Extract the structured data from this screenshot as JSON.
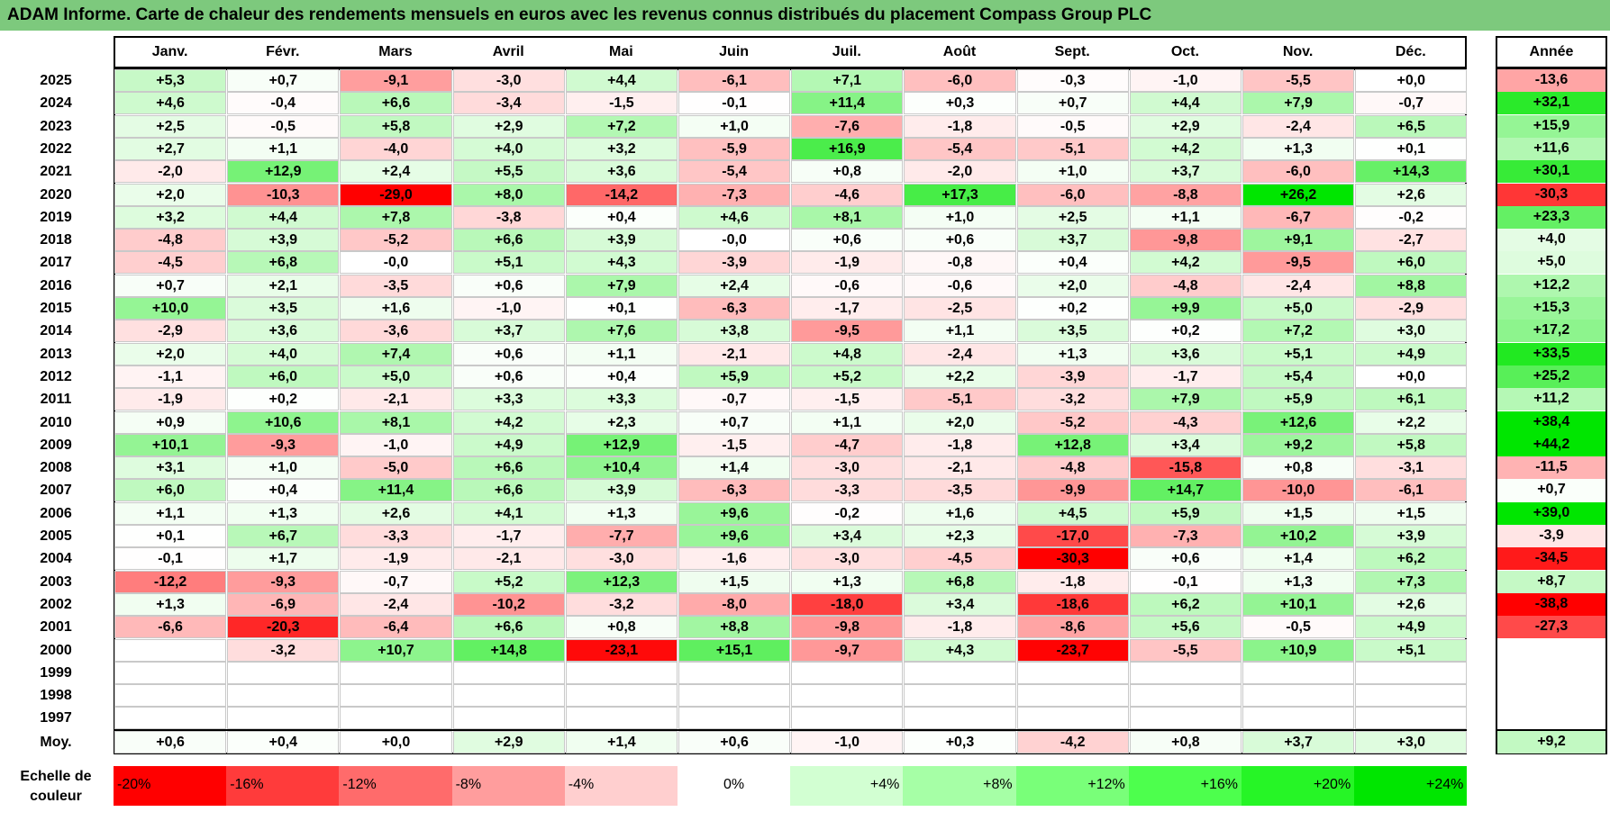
{
  "title": "ADAM Informe. Carte de chaleur des rendements mensuels en euros avec les revenus connus distribués du placement Compass Group PLC",
  "chart_data": {
    "type": "heatmap",
    "months": [
      "Janv.",
      "Févr.",
      "Mars",
      "Avril",
      "Mai",
      "Juin",
      "Juil.",
      "Août",
      "Sept.",
      "Oct.",
      "Nov.",
      "Déc."
    ],
    "year_header": "Année",
    "rows": [
      {
        "year": "2025",
        "months": [
          "+5,3",
          "+0,7",
          "-9,1",
          "-3,0",
          "+4,4",
          "-6,1",
          "+7,1",
          "-6,0",
          "-0,3",
          "-1,0",
          "-5,5",
          "+0,0"
        ],
        "annual": "-13,6"
      },
      {
        "year": "2024",
        "months": [
          "+4,6",
          "-0,4",
          "+6,6",
          "-3,4",
          "-1,5",
          "-0,1",
          "+11,4",
          "+0,3",
          "+0,7",
          "+4,4",
          "+7,9",
          "-0,7"
        ],
        "annual": "+32,1"
      },
      {
        "year": "2023",
        "months": [
          "+2,5",
          "-0,5",
          "+5,8",
          "+2,9",
          "+7,2",
          "+1,0",
          "-7,6",
          "-1,8",
          "-0,5",
          "+2,9",
          "-2,4",
          "+6,5"
        ],
        "annual": "+15,9"
      },
      {
        "year": "2022",
        "months": [
          "+2,7",
          "+1,1",
          "-4,0",
          "+4,0",
          "+3,2",
          "-5,9",
          "+16,9",
          "-5,4",
          "-5,1",
          "+4,2",
          "+1,3",
          "+0,1"
        ],
        "annual": "+11,6"
      },
      {
        "year": "2021",
        "months": [
          "-2,0",
          "+12,9",
          "+2,4",
          "+5,5",
          "+3,6",
          "-5,4",
          "+0,8",
          "-2,0",
          "+1,0",
          "+3,7",
          "-6,0",
          "+14,3"
        ],
        "annual": "+30,1"
      },
      {
        "year": "2020",
        "months": [
          "+2,0",
          "-10,3",
          "-29,0",
          "+8,0",
          "-14,2",
          "-7,3",
          "-4,6",
          "+17,3",
          "-6,0",
          "-8,8",
          "+26,2",
          "+2,6"
        ],
        "annual": "-30,3"
      },
      {
        "year": "2019",
        "months": [
          "+3,2",
          "+4,4",
          "+7,8",
          "-3,8",
          "+0,4",
          "+4,6",
          "+8,1",
          "+1,0",
          "+2,5",
          "+1,1",
          "-6,7",
          "-0,2"
        ],
        "annual": "+23,3"
      },
      {
        "year": "2018",
        "months": [
          "-4,8",
          "+3,9",
          "-5,2",
          "+6,6",
          "+3,9",
          "-0,0",
          "+0,6",
          "+0,6",
          "+3,7",
          "-9,8",
          "+9,1",
          "-2,7"
        ],
        "annual": "+4,0"
      },
      {
        "year": "2017",
        "months": [
          "-4,5",
          "+6,8",
          "-0,0",
          "+5,1",
          "+4,3",
          "-3,9",
          "-1,9",
          "-0,8",
          "+0,4",
          "+4,2",
          "-9,5",
          "+6,0"
        ],
        "annual": "+5,0"
      },
      {
        "year": "2016",
        "months": [
          "+0,7",
          "+2,1",
          "-3,5",
          "+0,6",
          "+7,9",
          "+2,4",
          "-0,6",
          "-0,6",
          "+2,0",
          "-4,8",
          "-2,4",
          "+8,8"
        ],
        "annual": "+12,2"
      },
      {
        "year": "2015",
        "months": [
          "+10,0",
          "+3,5",
          "+1,6",
          "-1,0",
          "+0,1",
          "-6,3",
          "-1,7",
          "-2,5",
          "+0,2",
          "+9,9",
          "+5,0",
          "-2,9"
        ],
        "annual": "+15,3"
      },
      {
        "year": "2014",
        "months": [
          "-2,9",
          "+3,6",
          "-3,6",
          "+3,7",
          "+7,6",
          "+3,8",
          "-9,5",
          "+1,1",
          "+3,5",
          "+0,2",
          "+7,2",
          "+3,0"
        ],
        "annual": "+17,2"
      },
      {
        "year": "2013",
        "months": [
          "+2,0",
          "+4,0",
          "+7,4",
          "+0,6",
          "+1,1",
          "-2,1",
          "+4,8",
          "-2,4",
          "+1,3",
          "+3,6",
          "+5,1",
          "+4,9"
        ],
        "annual": "+33,5"
      },
      {
        "year": "2012",
        "months": [
          "-1,1",
          "+6,0",
          "+5,0",
          "+0,6",
          "+0,4",
          "+5,9",
          "+5,2",
          "+2,2",
          "-3,9",
          "-1,7",
          "+5,4",
          "+0,0"
        ],
        "annual": "+25,2"
      },
      {
        "year": "2011",
        "months": [
          "-1,9",
          "+0,2",
          "-2,1",
          "+3,3",
          "+3,3",
          "-0,7",
          "-1,5",
          "-5,1",
          "-3,2",
          "+7,9",
          "+5,9",
          "+6,1"
        ],
        "annual": "+11,2"
      },
      {
        "year": "2010",
        "months": [
          "+0,9",
          "+10,6",
          "+8,1",
          "+4,2",
          "+2,3",
          "+0,7",
          "+1,1",
          "+2,0",
          "-5,2",
          "-4,3",
          "+12,6",
          "+2,2"
        ],
        "annual": "+38,4"
      },
      {
        "year": "2009",
        "months": [
          "+10,1",
          "-9,3",
          "-1,0",
          "+4,9",
          "+12,9",
          "-1,5",
          "-4,7",
          "-1,8",
          "+12,8",
          "+3,4",
          "+9,2",
          "+5,8"
        ],
        "annual": "+44,2"
      },
      {
        "year": "2008",
        "months": [
          "+3,1",
          "+1,0",
          "-5,0",
          "+6,6",
          "+10,4",
          "+1,4",
          "-3,0",
          "-2,1",
          "-4,8",
          "-15,8",
          "+0,8",
          "-3,1"
        ],
        "annual": "-11,5"
      },
      {
        "year": "2007",
        "months": [
          "+6,0",
          "+0,4",
          "+11,4",
          "+6,6",
          "+3,9",
          "-6,3",
          "-3,3",
          "-3,5",
          "-9,9",
          "+14,7",
          "-10,0",
          "-6,1"
        ],
        "annual": "+0,7"
      },
      {
        "year": "2006",
        "months": [
          "+1,1",
          "+1,3",
          "+2,6",
          "+4,1",
          "+1,3",
          "+9,6",
          "-0,2",
          "+1,6",
          "+4,5",
          "+5,9",
          "+1,5",
          "+1,5"
        ],
        "annual": "+39,0"
      },
      {
        "year": "2005",
        "months": [
          "+0,1",
          "+6,7",
          "-3,3",
          "-1,7",
          "-7,7",
          "+9,6",
          "+3,4",
          "+2,3",
          "-17,0",
          "-7,3",
          "+10,2",
          "+3,9"
        ],
        "annual": "-3,9"
      },
      {
        "year": "2004",
        "months": [
          "-0,1",
          "+1,7",
          "-1,9",
          "-2,1",
          "-3,0",
          "-1,6",
          "-3,0",
          "-4,5",
          "-30,3",
          "+0,6",
          "+1,4",
          "+6,2"
        ],
        "annual": "-34,5"
      },
      {
        "year": "2003",
        "months": [
          "-12,2",
          "-9,3",
          "-0,7",
          "+5,2",
          "+12,3",
          "+1,5",
          "+1,3",
          "+6,8",
          "-1,8",
          "-0,1",
          "+1,3",
          "+7,3"
        ],
        "annual": "+8,7"
      },
      {
        "year": "2002",
        "months": [
          "+1,3",
          "-6,9",
          "-2,4",
          "-10,2",
          "-3,2",
          "-8,0",
          "-18,0",
          "+3,4",
          "-18,6",
          "+6,2",
          "+10,1",
          "+2,6"
        ],
        "annual": "-38,8"
      },
      {
        "year": "2001",
        "months": [
          "-6,6",
          "-20,3",
          "-6,4",
          "+6,6",
          "+0,8",
          "+8,8",
          "-9,8",
          "-1,8",
          "-8,6",
          "+5,6",
          "-0,5",
          "+4,9"
        ],
        "annual": "-27,3"
      },
      {
        "year": "2000",
        "months": [
          "",
          "-3,2",
          "+10,7",
          "+14,8",
          "-23,1",
          "+15,1",
          "-9,7",
          "+4,3",
          "-23,7",
          "-5,5",
          "+10,9",
          "+5,1"
        ],
        "annual": ""
      },
      {
        "year": "1999",
        "months": [
          "",
          "",
          "",
          "",
          "",
          "",
          "",
          "",
          "",
          "",
          "",
          ""
        ],
        "annual": ""
      },
      {
        "year": "1998",
        "months": [
          "",
          "",
          "",
          "",
          "",
          "",
          "",
          "",
          "",
          "",
          "",
          ""
        ],
        "annual": ""
      },
      {
        "year": "1997",
        "months": [
          "",
          "",
          "",
          "",
          "",
          "",
          "",
          "",
          "",
          "",
          "",
          ""
        ],
        "annual": ""
      }
    ],
    "average": {
      "label": "Moy.",
      "months": [
        "+0,6",
        "+0,4",
        "+0,0",
        "+2,9",
        "+1,4",
        "+0,6",
        "-1,0",
        "+0,3",
        "-4,2",
        "+0,8",
        "+3,7",
        "+3,0"
      ],
      "annual": "+9,2"
    },
    "scale_label_1": "Echelle de",
    "scale_label_2": "couleur",
    "scale": [
      {
        "label": "-20%",
        "color": "#ff0000",
        "align": "left"
      },
      {
        "label": "-16%",
        "color": "#ff3b3b",
        "align": "left"
      },
      {
        "label": "-12%",
        "color": "#ff6b6b",
        "align": "left"
      },
      {
        "label": "-8%",
        "color": "#ff9d9d",
        "align": "left"
      },
      {
        "label": "-4%",
        "color": "#ffcfcf",
        "align": "left"
      },
      {
        "label": "0%",
        "color": "#ffffff",
        "align": "center"
      },
      {
        "label": "+4%",
        "color": "#d2ffd2",
        "align": "right"
      },
      {
        "label": "+8%",
        "color": "#a6ffa6",
        "align": "right"
      },
      {
        "label": "+12%",
        "color": "#79ff79",
        "align": "right"
      },
      {
        "label": "+16%",
        "color": "#4dff4d",
        "align": "right"
      },
      {
        "label": "+20%",
        "color": "#26f526",
        "align": "right"
      },
      {
        "label": "+24%",
        "color": "#00e600",
        "align": "right"
      }
    ]
  }
}
